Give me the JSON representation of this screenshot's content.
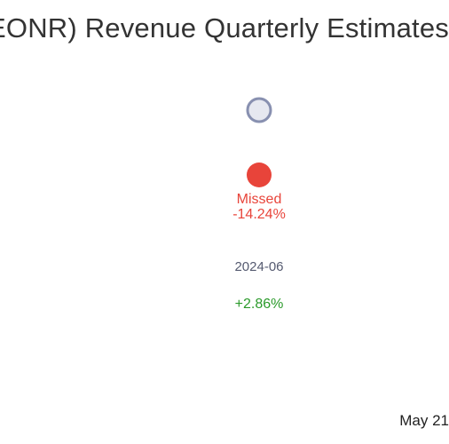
{
  "title": "EONR) Revenue Quarterly Estimates",
  "footer_date": "May 21",
  "colors": {
    "estimate_marker": "#8890b0",
    "estimate_fill": "#e6e8f0",
    "actual_marker": "#e8443a",
    "missed_text": "#e8443a",
    "positive_text": "#2a9a2a"
  },
  "chart_data": {
    "type": "scatter",
    "title": "EONR) Revenue Quarterly Estimates",
    "categories": [
      "2024-06"
    ],
    "series": [
      {
        "name": "",
        "role": "estimate",
        "values": [
          null
        ]
      },
      {
        "name": "",
        "role": "actual",
        "values": [
          null
        ]
      }
    ],
    "points": [
      {
        "period": "2024-06",
        "status": "Missed",
        "surprise": "-14.24%",
        "yoy_change": "+2.86%"
      }
    ]
  }
}
